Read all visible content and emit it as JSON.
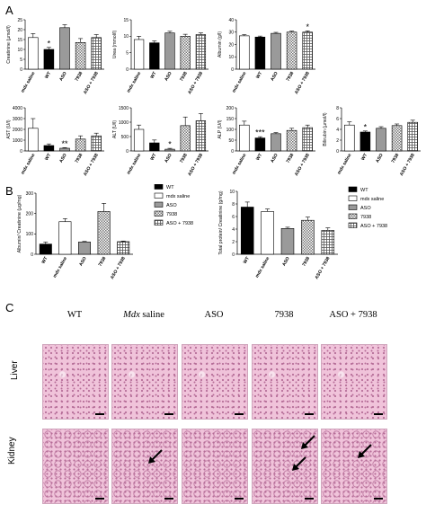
{
  "panel_labels": {
    "a": "A",
    "b": "B",
    "c": "C"
  },
  "colors": {
    "wt": "#000000",
    "mdx_saline": "#ffffff",
    "aso": "#9a9a9a",
    "g7938": "checker",
    "aso_7938": "crosshatch",
    "tissue_bg": "#f0c3da",
    "tissue_dark": "#b56c97"
  },
  "chart_data": [
    {
      "type": "bar",
      "ylabel": "Creatinine (µmol/l)",
      "ylim": [
        0,
        25
      ],
      "yticks": [
        0,
        5,
        10,
        15,
        20,
        25
      ],
      "categories": [
        "mdx saline",
        "WT",
        "ASO",
        "7938",
        "ASO + 7938"
      ],
      "values": [
        16,
        10,
        21,
        13.5,
        16
      ],
      "errors": [
        2,
        1,
        1.5,
        2,
        1.5
      ],
      "stars": [
        "",
        "*",
        "",
        "",
        ""
      ]
    },
    {
      "type": "bar",
      "ylabel": "Urea (mmol/l)",
      "ylim": [
        0,
        15
      ],
      "yticks": [
        0,
        5,
        10,
        15
      ],
      "categories": [
        "mdx saline",
        "WT",
        "ASO",
        "7938",
        "ASO + 7938"
      ],
      "values": [
        9,
        8,
        11,
        10,
        10.5
      ],
      "errors": [
        1,
        0.6,
        0.5,
        0.6,
        0.5
      ],
      "stars": [
        "",
        "",
        "",
        "",
        ""
      ]
    },
    {
      "type": "bar",
      "ylabel": "Albumin (g/l)",
      "ylim": [
        0,
        40
      ],
      "yticks": [
        0,
        10,
        20,
        30,
        40
      ],
      "categories": [
        "mdx saline",
        "WT",
        "ASO",
        "7938",
        "ASO + 7938"
      ],
      "values": [
        27,
        26,
        29,
        30,
        30
      ],
      "errors": [
        1,
        0.8,
        0.8,
        0.8,
        1
      ],
      "stars": [
        "",
        "",
        "",
        "",
        "*"
      ]
    },
    {
      "type": "bar",
      "ylabel": "AST (U/l)",
      "ylim": [
        0,
        4000
      ],
      "yticks": [
        0,
        1000,
        2000,
        3000,
        4000
      ],
      "categories": [
        "mdx saline",
        "WT",
        "ASO",
        "7938",
        "ASO + 7938"
      ],
      "values": [
        2100,
        500,
        250,
        1100,
        1400
      ],
      "errors": [
        900,
        150,
        60,
        300,
        250
      ],
      "stars": [
        "",
        "",
        "**",
        "",
        ""
      ]
    },
    {
      "type": "bar",
      "ylabel": "ALT (U/l)",
      "ylim": [
        0,
        1500
      ],
      "yticks": [
        0,
        500,
        1000,
        1500
      ],
      "categories": [
        "mdx saline",
        "WT",
        "ASO",
        "7938",
        "ASO + 7938"
      ],
      "values": [
        750,
        280,
        60,
        880,
        1050
      ],
      "errors": [
        150,
        100,
        30,
        300,
        250
      ],
      "stars": [
        "",
        "",
        "*",
        "",
        ""
      ]
    },
    {
      "type": "bar",
      "ylabel": "ALP (U/l)",
      "ylim": [
        0,
        200
      ],
      "yticks": [
        0,
        50,
        100,
        150,
        200
      ],
      "categories": [
        "mdx saline",
        "WT",
        "ASO",
        "7938",
        "ASO + 7938"
      ],
      "values": [
        120,
        60,
        80,
        95,
        108
      ],
      "errors": [
        18,
        6,
        5,
        10,
        12
      ],
      "stars": [
        "",
        "***",
        "",
        "",
        ""
      ]
    },
    {
      "type": "bar",
      "ylabel": "Bilirubin (µmol/l)",
      "ylim": [
        0,
        8
      ],
      "yticks": [
        0,
        2,
        4,
        6,
        8
      ],
      "categories": [
        "mdx saline",
        "WT",
        "ASO",
        "7938",
        "ASO + 7938"
      ],
      "values": [
        4.8,
        3.5,
        4.2,
        4.7,
        5.3
      ],
      "errors": [
        0.6,
        0.2,
        0.3,
        0.3,
        0.4
      ],
      "stars": [
        "",
        "*",
        "",
        "",
        ""
      ]
    },
    {
      "type": "bar",
      "ylabel": "Albumin/ Creatinine (µg/mg)",
      "ylim": [
        0,
        300
      ],
      "yticks": [
        0,
        100,
        200,
        300
      ],
      "categories": [
        "WT",
        "mdx saline",
        "ASO",
        "7938",
        "ASO + 7938"
      ],
      "values": [
        50,
        160,
        60,
        210,
        62
      ],
      "errors": [
        10,
        15,
        3,
        40,
        3
      ],
      "stars": [
        "",
        "",
        "",
        "",
        ""
      ],
      "legend": [
        "WT",
        "mdx saline",
        "ASO",
        "7938",
        "ASO + 7938"
      ]
    },
    {
      "type": "bar",
      "ylabel": "Total protein/ Creatinine (g/mg)",
      "ylim": [
        0,
        10
      ],
      "yticks": [
        0,
        2,
        4,
        6,
        8,
        10
      ],
      "categories": [
        "WT",
        "mdx saline",
        "ASO",
        "7938",
        "ASO + 7938"
      ],
      "values": [
        7.5,
        6.8,
        4.1,
        5.4,
        3.8
      ],
      "errors": [
        0.8,
        0.4,
        0.2,
        0.5,
        0.4
      ],
      "stars": [
        "",
        "",
        "",
        "",
        ""
      ],
      "legend": [
        "WT",
        "mdx saline",
        "ASO",
        "7938",
        "ASO + 7938"
      ]
    }
  ],
  "histology": {
    "columns": [
      "WT",
      "Mdx saline",
      "ASO",
      "7938",
      "ASO + 7938"
    ],
    "rows": [
      "Liver",
      "Kidney"
    ]
  }
}
